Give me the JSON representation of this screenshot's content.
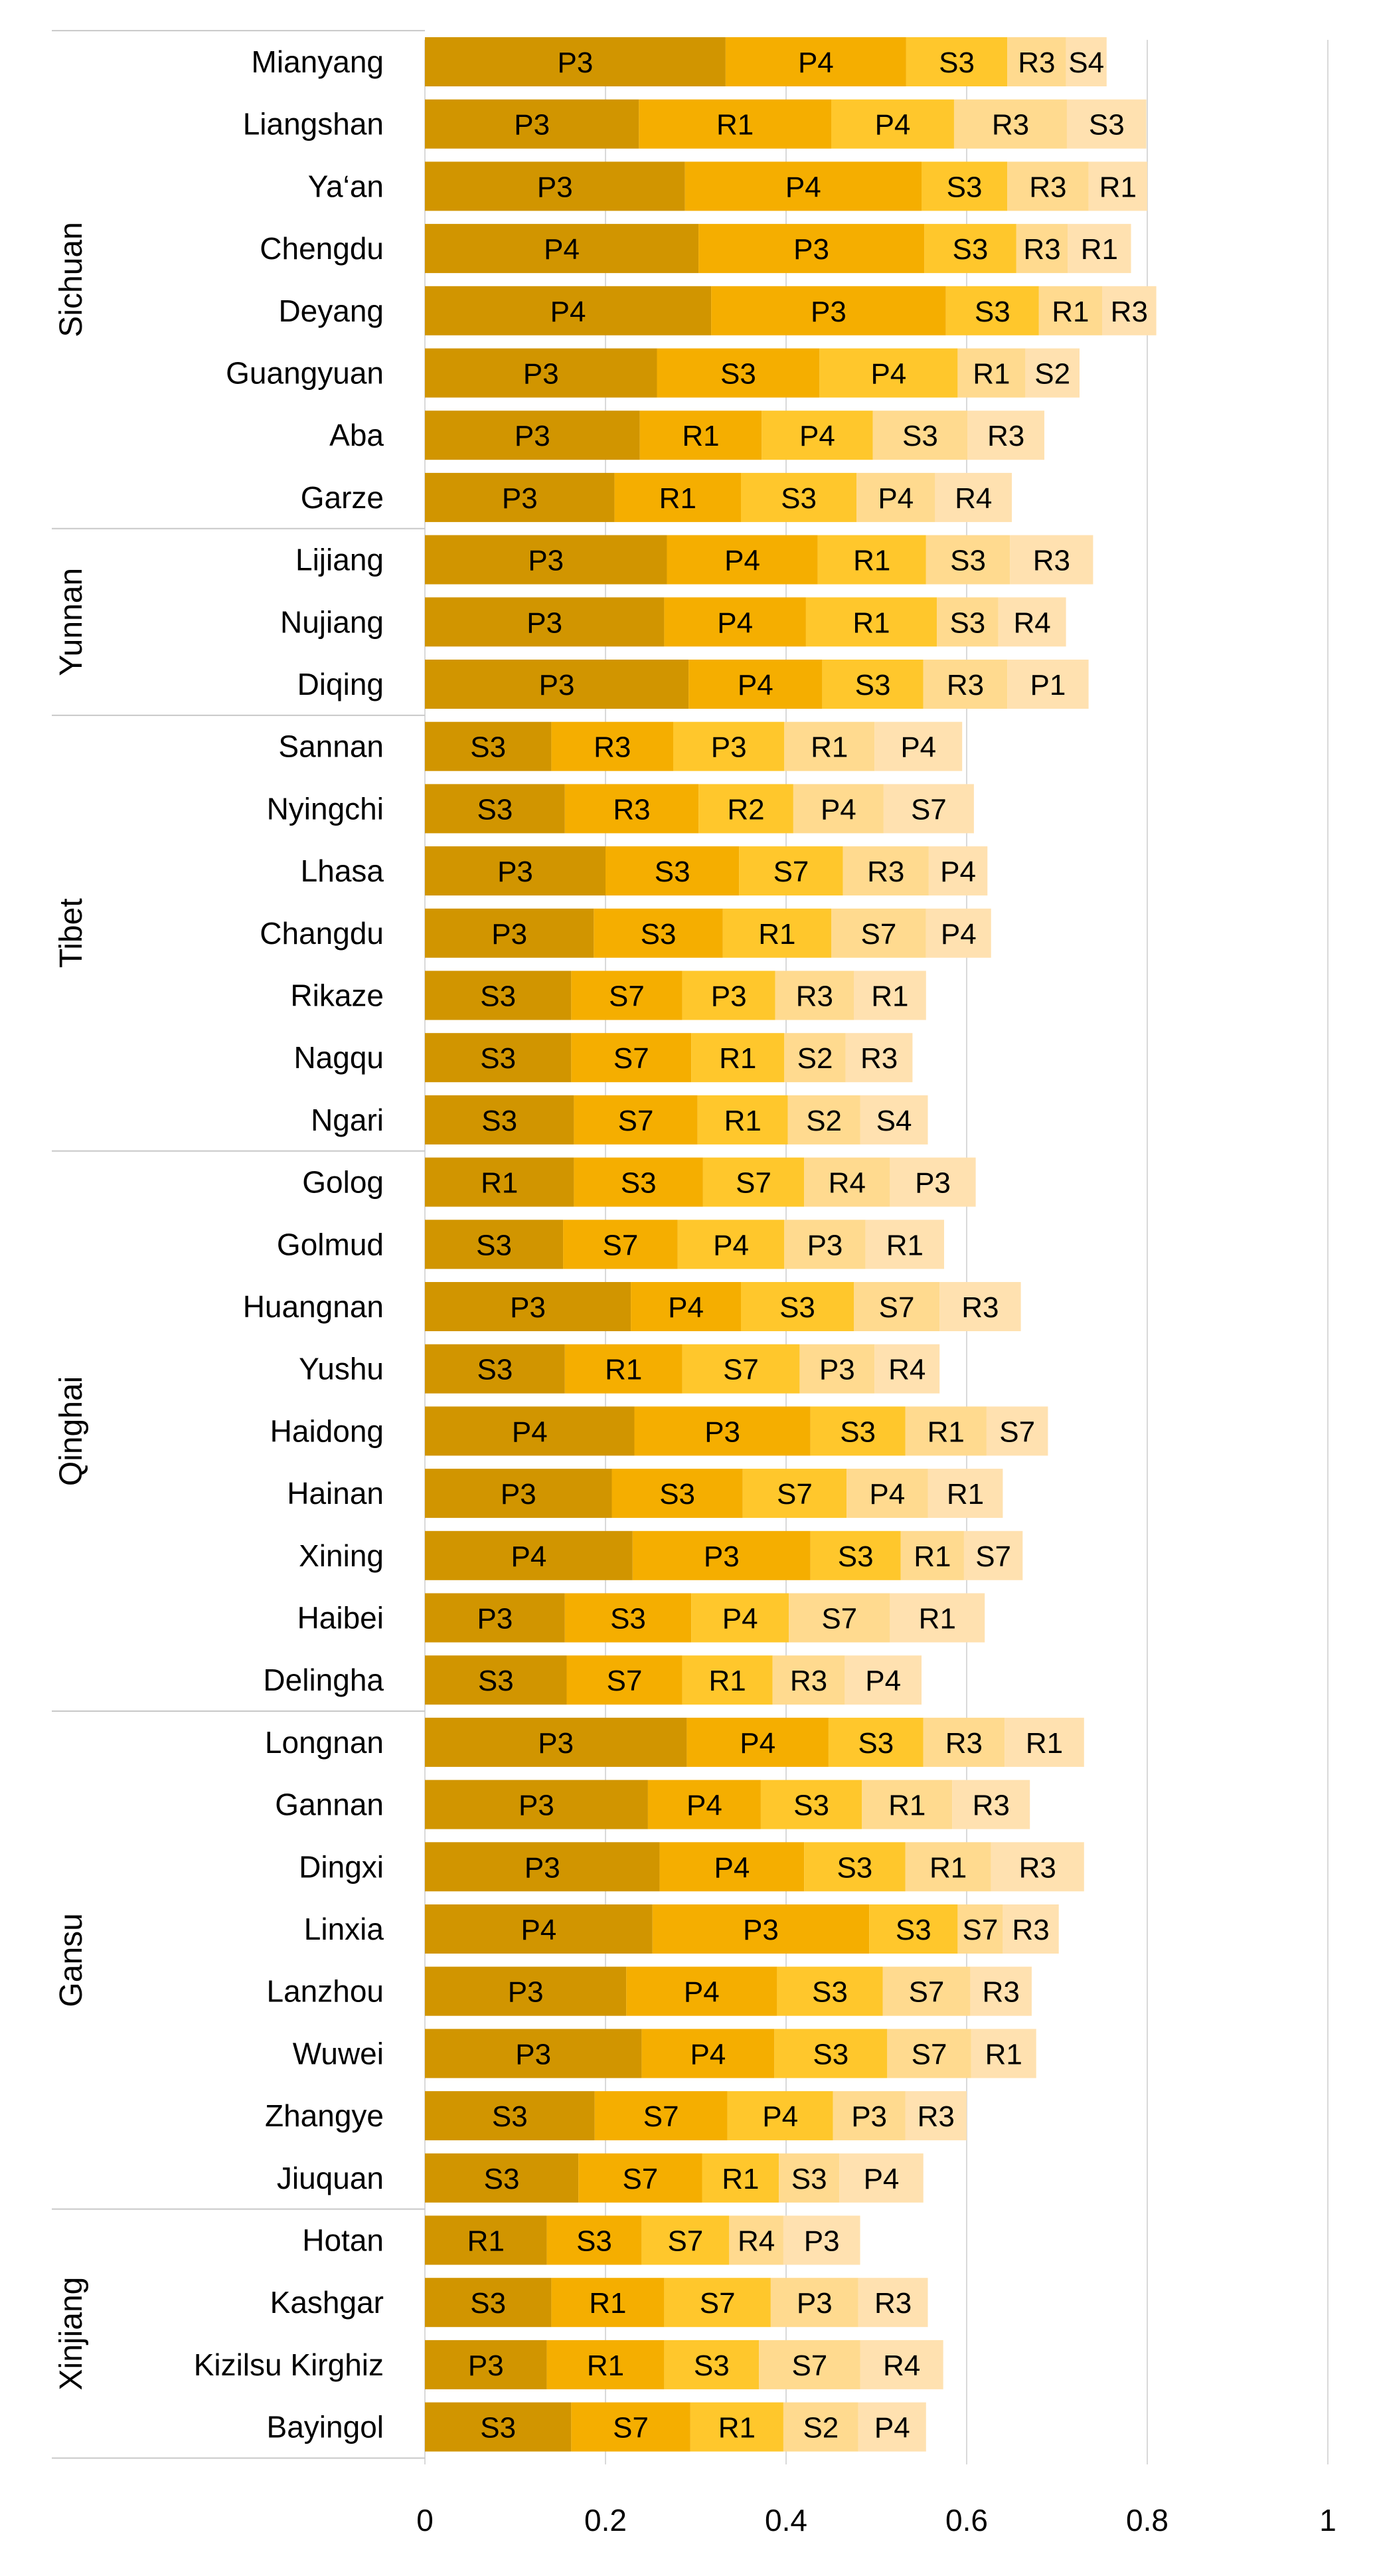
{
  "chart_data": {
    "type": "bar",
    "orientation": "horizontal",
    "stacked": true,
    "title": "",
    "xlabel": "",
    "ylabel": "",
    "xlim": [
      0,
      1
    ],
    "x_ticks": [
      "0",
      "0.2",
      "0.4",
      "0.6",
      "0.8",
      "1"
    ],
    "x_tick_values": [
      0,
      0.2,
      0.4,
      0.6,
      0.8,
      1
    ],
    "grid": "vertical",
    "legend": "none",
    "segment_colors": [
      "#D19500",
      "#F5AE00",
      "#FFC72C",
      "#FFDA8F",
      "#FFE1B0"
    ],
    "groups": [
      {
        "name": "Sichuan",
        "rows": [
          {
            "name": "Mianyang",
            "labels": [
              "P3",
              "P4",
              "S3",
              "R3",
              "S4"
            ],
            "values": [
              0.333,
              0.2,
              0.112,
              0.065,
              0.045
            ]
          },
          {
            "name": "Liangshan",
            "labels": [
              "P3",
              "R1",
              "P4",
              "R3",
              "S3"
            ],
            "values": [
              0.237,
              0.213,
              0.136,
              0.125,
              0.088
            ]
          },
          {
            "name": "Ya‘an",
            "labels": [
              "P3",
              "P4",
              "S3",
              "R3",
              "R1"
            ],
            "values": [
              0.288,
              0.262,
              0.095,
              0.09,
              0.065
            ]
          },
          {
            "name": "Chengdu",
            "labels": [
              "P4",
              "P3",
              "S3",
              "R3",
              "R1"
            ],
            "values": [
              0.303,
              0.25,
              0.102,
              0.057,
              0.07
            ]
          },
          {
            "name": "Deyang",
            "labels": [
              "P4",
              "P3",
              "S3",
              "R1",
              "R3"
            ],
            "values": [
              0.317,
              0.26,
              0.103,
              0.07,
              0.06
            ]
          },
          {
            "name": "Guangyuan",
            "labels": [
              "P3",
              "S3",
              "P4",
              "R1",
              "S2"
            ],
            "values": [
              0.257,
              0.18,
              0.153,
              0.075,
              0.06
            ]
          },
          {
            "name": "Aba",
            "labels": [
              "P3",
              "R1",
              "P4",
              "S3",
              "R3"
            ],
            "values": [
              0.238,
              0.135,
              0.123,
              0.105,
              0.085
            ]
          },
          {
            "name": "Garze",
            "labels": [
              "P3",
              "R1",
              "S3",
              "P4",
              "R4"
            ],
            "values": [
              0.21,
              0.14,
              0.128,
              0.087,
              0.085
            ]
          }
        ]
      },
      {
        "name": "Yunnan",
        "rows": [
          {
            "name": "Lijiang",
            "labels": [
              "P3",
              "P4",
              "R1",
              "S3",
              "R3"
            ],
            "values": [
              0.268,
              0.167,
              0.12,
              0.093,
              0.092
            ]
          },
          {
            "name": "Nujiang",
            "labels": [
              "P3",
              "P4",
              "R1",
              "S3",
              "R4"
            ],
            "values": [
              0.265,
              0.157,
              0.145,
              0.068,
              0.075
            ]
          },
          {
            "name": "Diqing",
            "labels": [
              "P3",
              "P4",
              "S3",
              "R3",
              "P1"
            ],
            "values": [
              0.292,
              0.148,
              0.112,
              0.093,
              0.09
            ]
          }
        ]
      },
      {
        "name": "Tibet",
        "rows": [
          {
            "name": "Sannan",
            "labels": [
              "S3",
              "R3",
              "P3",
              "R1",
              "P4"
            ],
            "values": [
              0.14,
              0.135,
              0.123,
              0.1,
              0.097
            ]
          },
          {
            "name": "Nyingchi",
            "labels": [
              "S3",
              "R3",
              "R2",
              "P4",
              "S7"
            ],
            "values": [
              0.155,
              0.148,
              0.105,
              0.1,
              0.1
            ]
          },
          {
            "name": "Lhasa",
            "labels": [
              "P3",
              "S3",
              "S7",
              "R3",
              "P4"
            ],
            "values": [
              0.2,
              0.148,
              0.115,
              0.095,
              0.065
            ]
          },
          {
            "name": "Changdu",
            "labels": [
              "P3",
              "S3",
              "R1",
              "S7",
              "P4"
            ],
            "values": [
              0.187,
              0.143,
              0.12,
              0.105,
              0.072
            ]
          },
          {
            "name": "Rikaze",
            "labels": [
              "S3",
              "S7",
              "P3",
              "R3",
              "R1"
            ],
            "values": [
              0.162,
              0.123,
              0.103,
              0.087,
              0.08
            ]
          },
          {
            "name": "Nagqu",
            "labels": [
              "S3",
              "S7",
              "R1",
              "S2",
              "R3"
            ],
            "values": [
              0.162,
              0.133,
              0.103,
              0.068,
              0.074
            ]
          },
          {
            "name": "Ngari",
            "labels": [
              "S3",
              "S7",
              "R1",
              "S2",
              "S4"
            ],
            "values": [
              0.165,
              0.137,
              0.1,
              0.08,
              0.075
            ]
          }
        ]
      },
      {
        "name": "Qinghai",
        "rows": [
          {
            "name": "Golog",
            "labels": [
              "R1",
              "S3",
              "S7",
              "R4",
              "P3"
            ],
            "values": [
              0.165,
              0.143,
              0.112,
              0.095,
              0.095
            ]
          },
          {
            "name": "Golmud",
            "labels": [
              "S3",
              "S7",
              "P4",
              "P3",
              "R1"
            ],
            "values": [
              0.153,
              0.127,
              0.118,
              0.09,
              0.087
            ]
          },
          {
            "name": "Huangnan",
            "labels": [
              "P3",
              "P4",
              "S3",
              "S7",
              "R3"
            ],
            "values": [
              0.228,
              0.122,
              0.125,
              0.095,
              0.09
            ]
          },
          {
            "name": "Yushu",
            "labels": [
              "S3",
              "R1",
              "S7",
              "P3",
              "R4"
            ],
            "values": [
              0.155,
              0.13,
              0.13,
              0.083,
              0.072
            ]
          },
          {
            "name": "Haidong",
            "labels": [
              "P4",
              "P3",
              "S3",
              "R1",
              "S7"
            ],
            "values": [
              0.232,
              0.195,
              0.105,
              0.09,
              0.068
            ]
          },
          {
            "name": "Hainan",
            "labels": [
              "P3",
              "S3",
              "S7",
              "P4",
              "R1"
            ],
            "values": [
              0.207,
              0.145,
              0.115,
              0.09,
              0.083
            ]
          },
          {
            "name": "Xining",
            "labels": [
              "P4",
              "P3",
              "S3",
              "R1",
              "S7"
            ],
            "values": [
              0.23,
              0.197,
              0.1,
              0.07,
              0.065
            ]
          },
          {
            "name": "Haibei",
            "labels": [
              "P3",
              "S3",
              "P4",
              "S7",
              "R1"
            ],
            "values": [
              0.155,
              0.14,
              0.108,
              0.112,
              0.105
            ]
          },
          {
            "name": "Delingha",
            "labels": [
              "S3",
              "S7",
              "R1",
              "R3",
              "P4"
            ],
            "values": [
              0.157,
              0.128,
              0.1,
              0.08,
              0.085
            ]
          }
        ]
      },
      {
        "name": "Gansu",
        "rows": [
          {
            "name": "Longnan",
            "labels": [
              "P3",
              "P4",
              "S3",
              "R3",
              "R1"
            ],
            "values": [
              0.29,
              0.157,
              0.105,
              0.09,
              0.088
            ]
          },
          {
            "name": "Gannan",
            "labels": [
              "P3",
              "P4",
              "S3",
              "R1",
              "R3"
            ],
            "values": [
              0.247,
              0.125,
              0.112,
              0.1,
              0.086
            ]
          },
          {
            "name": "Dingxi",
            "labels": [
              "P3",
              "P4",
              "S3",
              "R1",
              "R3"
            ],
            "values": [
              0.26,
              0.16,
              0.112,
              0.095,
              0.103
            ]
          },
          {
            "name": "Linxia",
            "labels": [
              "P4",
              "P3",
              "S3",
              "S7",
              "R3"
            ],
            "values": [
              0.252,
              0.24,
              0.098,
              0.05,
              0.062
            ]
          },
          {
            "name": "Lanzhou",
            "labels": [
              "P3",
              "P4",
              "S3",
              "S7",
              "R3"
            ],
            "values": [
              0.223,
              0.167,
              0.117,
              0.097,
              0.068
            ]
          },
          {
            "name": "Wuwei",
            "labels": [
              "P3",
              "P4",
              "S3",
              "S7",
              "R1"
            ],
            "values": [
              0.24,
              0.147,
              0.125,
              0.093,
              0.072
            ]
          },
          {
            "name": "Zhangye",
            "labels": [
              "S3",
              "S7",
              "P4",
              "P3",
              "R3"
            ],
            "values": [
              0.188,
              0.147,
              0.117,
              0.08,
              0.068
            ]
          },
          {
            "name": "Jiuquan",
            "labels": [
              "S3",
              "S7",
              "R1",
              "S3",
              "P4"
            ],
            "values": [
              0.17,
              0.137,
              0.085,
              0.067,
              0.093
            ]
          }
        ]
      },
      {
        "name": "Xinjiang",
        "rows": [
          {
            "name": "Hotan",
            "labels": [
              "R1",
              "S3",
              "S7",
              "R4",
              "P3"
            ],
            "values": [
              0.135,
              0.105,
              0.097,
              0.06,
              0.085
            ]
          },
          {
            "name": "Kashgar",
            "labels": [
              "S3",
              "R1",
              "S7",
              "P3",
              "R3"
            ],
            "values": [
              0.14,
              0.125,
              0.118,
              0.097,
              0.077
            ]
          },
          {
            "name": "Kizilsu Kirghiz",
            "labels": [
              "P3",
              "R1",
              "S3",
              "S7",
              "R4"
            ],
            "values": [
              0.135,
              0.13,
              0.105,
              0.112,
              0.092
            ]
          },
          {
            "name": "Bayingol",
            "labels": [
              "S3",
              "S7",
              "R1",
              "S2",
              "P4"
            ],
            "values": [
              0.162,
              0.132,
              0.103,
              0.083,
              0.075
            ]
          }
        ]
      }
    ]
  }
}
